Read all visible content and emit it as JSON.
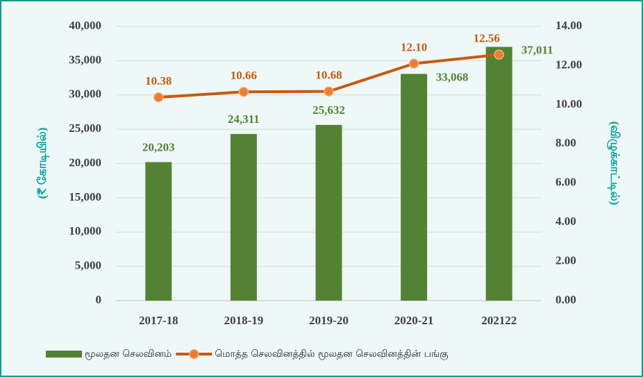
{
  "chart_data": {
    "type": "bar",
    "categories": [
      "2017-18",
      "2018-19",
      "2019-20",
      "2020-21",
      "202122"
    ],
    "series": [
      {
        "name": "மூலதன செலவினம்",
        "color": "#548235",
        "values": [
          20203,
          24311,
          25632,
          33068,
          37011
        ],
        "value_labels": [
          "20,203",
          "24,311",
          "25,632",
          "33,068",
          "37,011"
        ]
      },
      {
        "name": "மொத்த செலவினத்தில் மூலதன செலவினத்தின் பங்கு",
        "color": "#c55a11",
        "type": "line",
        "axis": "y2",
        "values": [
          10.38,
          10.66,
          10.68,
          12.1,
          12.56
        ],
        "value_labels": [
          "10.38",
          "10.66",
          "10.68",
          "12.10",
          "12.56"
        ]
      }
    ],
    "y_label": "(₹ கோடியில்)",
    "y2_label": "(விழுக்காட்டில்)",
    "ylim": [
      0,
      40000
    ],
    "yticks": [
      0,
      {
        "value": 5000,
        "label": "5,000"
      },
      {
        "value": 10000,
        "label": "10,000"
      },
      {
        "value": 15000,
        "label": "15,000"
      },
      {
        "value": 20000,
        "label": "20,000"
      },
      {
        "value": 25000,
        "label": "25,000"
      },
      {
        "value": 30000,
        "label": "30,000"
      },
      {
        "value": 35000,
        "label": "35,000"
      },
      {
        "value": 40000,
        "label": "40,000"
      }
    ],
    "y2lim": [
      0,
      14
    ],
    "y2ticks": [
      {
        "value": 0,
        "label": "0.00"
      },
      {
        "value": 2,
        "label": "2.00"
      },
      {
        "value": 4,
        "label": "4.00"
      },
      {
        "value": 6,
        "label": "6.00"
      },
      {
        "value": 8,
        "label": "8.00"
      },
      {
        "value": 10,
        "label": "10.00"
      },
      {
        "value": 12,
        "label": "12.00"
      },
      {
        "value": 14,
        "label": "14.00"
      }
    ],
    "grid": true,
    "legend": "bottom"
  }
}
